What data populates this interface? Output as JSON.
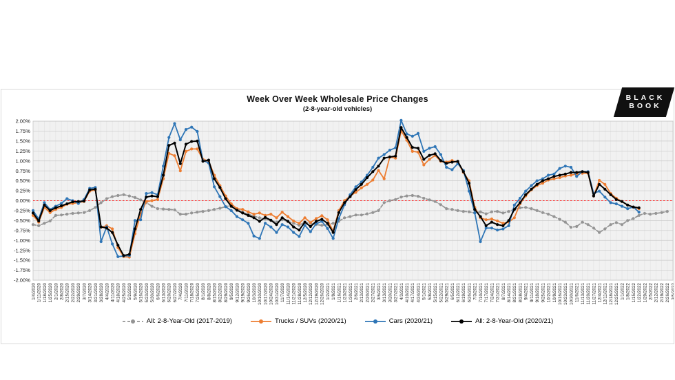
{
  "logo": {
    "line1": "BLACK",
    "line2": "BOOK",
    "bg": "#101010",
    "fg": "#ffffff"
  },
  "chart_data": {
    "type": "line",
    "title": "Week Over Week Wholesale Price Changes",
    "subtitle": "(2-8-year-old vehicles)",
    "grid": true,
    "legend_position": "bottom",
    "plot_background": "#f1f1f1",
    "zero_line_color": "#ff2a2a",
    "ylim": [
      -2.0,
      2.0
    ],
    "ytick_step": 0.25,
    "ytick_labels": [
      "2.00%",
      "1.75%",
      "1.50%",
      "1.25%",
      "1.00%",
      "0.75%",
      "0.50%",
      "0.25%",
      "0.00%",
      "-0.25%",
      "-0.50%",
      "-0.75%",
      "-1.00%",
      "-1.25%",
      "-1.50%",
      "-1.75%",
      "-2.00%"
    ],
    "x": [
      "1/4/2020",
      "1/11/2020",
      "1/18/2020",
      "1/25/2020",
      "2/1/2020",
      "2/8/2020",
      "2/15/2020",
      "2/22/2020",
      "2/29/2020",
      "3/7/2020",
      "3/14/2020",
      "3/21/2020",
      "3/28/2020",
      "4/4/2020",
      "4/11/2020",
      "4/18/2020",
      "4/25/2020",
      "5/2/2020",
      "5/9/2020",
      "5/16/2020",
      "5/23/2020",
      "5/30/2020",
      "6/6/2020",
      "6/13/2020",
      "6/20/2020",
      "6/27/2020",
      "7/4/2020",
      "7/11/2020",
      "7/18/2020",
      "7/25/2020",
      "8/1/2020",
      "8/8/2020",
      "8/15/2020",
      "8/22/2020",
      "8/29/2020",
      "9/5/2020",
      "9/12/2020",
      "9/19/2020",
      "9/26/2020",
      "10/3/2020",
      "10/10/2020",
      "10/17/2020",
      "10/24/2020",
      "10/31/2020",
      "11/7/2020",
      "11/14/2020",
      "11/21/2020",
      "11/28/2020",
      "12/5/2020",
      "12/12/2020",
      "12/19/2020",
      "12/26/2020",
      "1/2/2021",
      "1/9/2021",
      "1/16/2021",
      "1/23/2021",
      "1/30/2021",
      "2/6/2021",
      "2/13/2021",
      "2/20/2021",
      "2/27/2021",
      "3/6/2021",
      "3/13/2021",
      "3/20/2021",
      "3/27/2021",
      "4/3/2021",
      "4/10/2021",
      "4/17/2021",
      "4/24/2021",
      "5/1/2021",
      "5/8/2021",
      "5/15/2021",
      "5/22/2021",
      "5/29/2021",
      "6/5/2021",
      "6/12/2021",
      "6/19/2021",
      "6/26/2021",
      "7/3/2021",
      "7/10/2021",
      "7/17/2021",
      "7/24/2021",
      "7/31/2021",
      "8/7/2021",
      "8/14/2021",
      "8/21/2021",
      "8/28/2021",
      "9/4/2021",
      "9/11/2021",
      "9/18/2021",
      "9/25/2021",
      "10/2/2021",
      "10/9/2021",
      "10/16/2021",
      "10/23/2021",
      "10/30/2021",
      "11/6/2021",
      "11/13/2021",
      "11/20/2021",
      "11/27/2021",
      "12/4/2021",
      "12/11/2021",
      "12/18/2021",
      "12/25/2021",
      "1/1/2022",
      "1/8/2022",
      "1/15/2022",
      "1/22/2022",
      "1/29/2022",
      "2/5/2022",
      "2/12/2022",
      "2/19/2022",
      "2/26/2022",
      "3/5/2022"
    ],
    "series": [
      {
        "name": "All: 2-8-Year-Old (2017-2019)",
        "color": "#949494",
        "dashed": true,
        "values": [
          -0.6,
          -0.63,
          -0.57,
          -0.51,
          -0.37,
          -0.36,
          -0.34,
          -0.32,
          -0.31,
          -0.3,
          -0.25,
          -0.17,
          -0.05,
          0.05,
          0.1,
          0.13,
          0.15,
          0.12,
          0.08,
          0.02,
          -0.05,
          -0.14,
          -0.2,
          -0.21,
          -0.22,
          -0.23,
          -0.34,
          -0.34,
          -0.31,
          -0.29,
          -0.27,
          -0.25,
          -0.22,
          -0.19,
          -0.15,
          -0.12,
          -0.21,
          -0.29,
          -0.34,
          -0.39,
          -0.43,
          -0.46,
          -0.5,
          -0.54,
          -0.48,
          -0.52,
          -0.57,
          -0.62,
          -0.54,
          -0.57,
          -0.6,
          -0.62,
          -0.6,
          -0.57,
          -0.52,
          -0.43,
          -0.4,
          -0.36,
          -0.36,
          -0.33,
          -0.3,
          -0.25,
          -0.05,
          0.0,
          0.03,
          0.09,
          0.12,
          0.13,
          0.11,
          0.06,
          0.02,
          -0.02,
          -0.1,
          -0.2,
          -0.22,
          -0.25,
          -0.27,
          -0.28,
          -0.31,
          -0.28,
          -0.33,
          -0.28,
          -0.27,
          -0.31,
          -0.27,
          -0.22,
          -0.18,
          -0.17,
          -0.2,
          -0.25,
          -0.3,
          -0.34,
          -0.4,
          -0.47,
          -0.54,
          -0.67,
          -0.65,
          -0.54,
          -0.6,
          -0.69,
          -0.8,
          -0.71,
          -0.6,
          -0.55,
          -0.6,
          -0.5,
          -0.45,
          -0.37,
          -0.32,
          -0.34,
          -0.32,
          -0.3,
          -0.27,
          null
        ]
      },
      {
        "name": "Trucks / SUVs (2020/21)",
        "color": "#ed7d31",
        "dashed": false,
        "values": [
          -0.37,
          -0.54,
          -0.17,
          -0.3,
          -0.22,
          -0.17,
          -0.09,
          -0.07,
          -0.05,
          -0.02,
          0.24,
          0.27,
          -0.67,
          -0.63,
          -0.71,
          -1.18,
          -1.41,
          -1.42,
          -0.83,
          -0.34,
          -0.02,
          0.0,
          0.03,
          0.55,
          1.19,
          1.13,
          0.75,
          1.24,
          1.3,
          1.3,
          1.04,
          1.0,
          0.64,
          0.38,
          0.12,
          -0.08,
          -0.2,
          -0.22,
          -0.28,
          -0.34,
          -0.31,
          -0.37,
          -0.34,
          -0.43,
          -0.29,
          -0.4,
          -0.51,
          -0.57,
          -0.43,
          -0.55,
          -0.45,
          -0.38,
          -0.48,
          -0.77,
          -0.25,
          0.0,
          0.12,
          0.21,
          0.32,
          0.41,
          0.52,
          0.76,
          0.55,
          1.1,
          1.07,
          1.76,
          1.52,
          1.24,
          1.22,
          0.9,
          1.04,
          1.14,
          0.99,
          0.97,
          1.01,
          0.96,
          0.71,
          0.5,
          -0.17,
          -0.43,
          -0.48,
          -0.46,
          -0.51,
          -0.57,
          -0.54,
          -0.43,
          -0.08,
          0.12,
          0.27,
          0.38,
          0.44,
          0.52,
          0.55,
          0.58,
          0.62,
          0.64,
          0.67,
          0.69,
          0.69,
          0.12,
          0.51,
          0.41,
          0.18,
          0.06,
          -0.02,
          -0.11,
          -0.16,
          -0.2,
          null,
          null,
          null,
          null,
          null,
          null
        ]
      },
      {
        "name": "Cars (2020/21)",
        "color": "#2e75b6",
        "dashed": false,
        "values": [
          -0.25,
          -0.46,
          -0.05,
          -0.22,
          -0.14,
          -0.07,
          0.05,
          0.0,
          -0.07,
          0.03,
          0.31,
          0.33,
          -1.03,
          -0.66,
          -1.09,
          -1.41,
          -1.39,
          -1.38,
          -0.5,
          -0.48,
          0.18,
          0.2,
          0.15,
          0.87,
          1.59,
          1.94,
          1.53,
          1.79,
          1.85,
          1.74,
          1.01,
          0.95,
          0.35,
          0.1,
          -0.15,
          -0.25,
          -0.4,
          -0.48,
          -0.57,
          -0.89,
          -0.95,
          -0.57,
          -0.66,
          -0.8,
          -0.6,
          -0.66,
          -0.8,
          -0.9,
          -0.62,
          -0.78,
          -0.58,
          -0.52,
          -0.7,
          -0.95,
          -0.45,
          -0.1,
          0.15,
          0.35,
          0.47,
          0.64,
          0.84,
          1.07,
          1.16,
          1.27,
          1.33,
          2.02,
          1.68,
          1.62,
          1.69,
          1.24,
          1.32,
          1.36,
          1.16,
          0.84,
          0.78,
          0.93,
          0.76,
          0.24,
          -0.31,
          -1.03,
          -0.69,
          -0.69,
          -0.74,
          -0.71,
          -0.63,
          -0.11,
          0.06,
          0.24,
          0.38,
          0.5,
          0.55,
          0.64,
          0.67,
          0.81,
          0.87,
          0.84,
          0.61,
          0.73,
          0.73,
          0.18,
          0.24,
          0.09,
          -0.05,
          -0.08,
          -0.14,
          -0.2,
          -0.16,
          -0.29,
          null,
          null,
          null,
          null,
          null,
          null
        ]
      },
      {
        "name": "All: 2-8-Year-Old (2020/21)",
        "color": "#000000",
        "dashed": false,
        "values": [
          -0.31,
          -0.51,
          -0.11,
          -0.25,
          -0.18,
          -0.13,
          -0.08,
          -0.03,
          -0.02,
          -0.01,
          0.27,
          0.29,
          -0.66,
          -0.69,
          -0.8,
          -1.12,
          -1.38,
          -1.35,
          -0.71,
          -0.22,
          0.09,
          0.12,
          0.1,
          0.64,
          1.39,
          1.45,
          0.93,
          1.42,
          1.49,
          1.5,
          0.99,
          1.02,
          0.55,
          0.33,
          0.05,
          -0.14,
          -0.24,
          -0.31,
          -0.37,
          -0.43,
          -0.52,
          -0.42,
          -0.49,
          -0.6,
          -0.43,
          -0.52,
          -0.66,
          -0.74,
          -0.54,
          -0.65,
          -0.52,
          -0.47,
          -0.57,
          -0.8,
          -0.3,
          -0.05,
          0.1,
          0.28,
          0.41,
          0.58,
          0.73,
          0.87,
          1.07,
          1.1,
          1.12,
          1.84,
          1.59,
          1.34,
          1.32,
          1.04,
          1.14,
          1.18,
          1.01,
          0.94,
          0.97,
          0.99,
          0.73,
          0.44,
          -0.22,
          -0.4,
          -0.63,
          -0.54,
          -0.6,
          -0.63,
          -0.5,
          -0.22,
          -0.05,
          0.15,
          0.29,
          0.41,
          0.5,
          0.55,
          0.61,
          0.64,
          0.67,
          0.71,
          0.71,
          0.73,
          0.71,
          0.12,
          0.41,
          0.29,
          0.15,
          0.03,
          -0.02,
          -0.11,
          -0.16,
          -0.18,
          null,
          null,
          null,
          null,
          null,
          null
        ]
      }
    ]
  }
}
